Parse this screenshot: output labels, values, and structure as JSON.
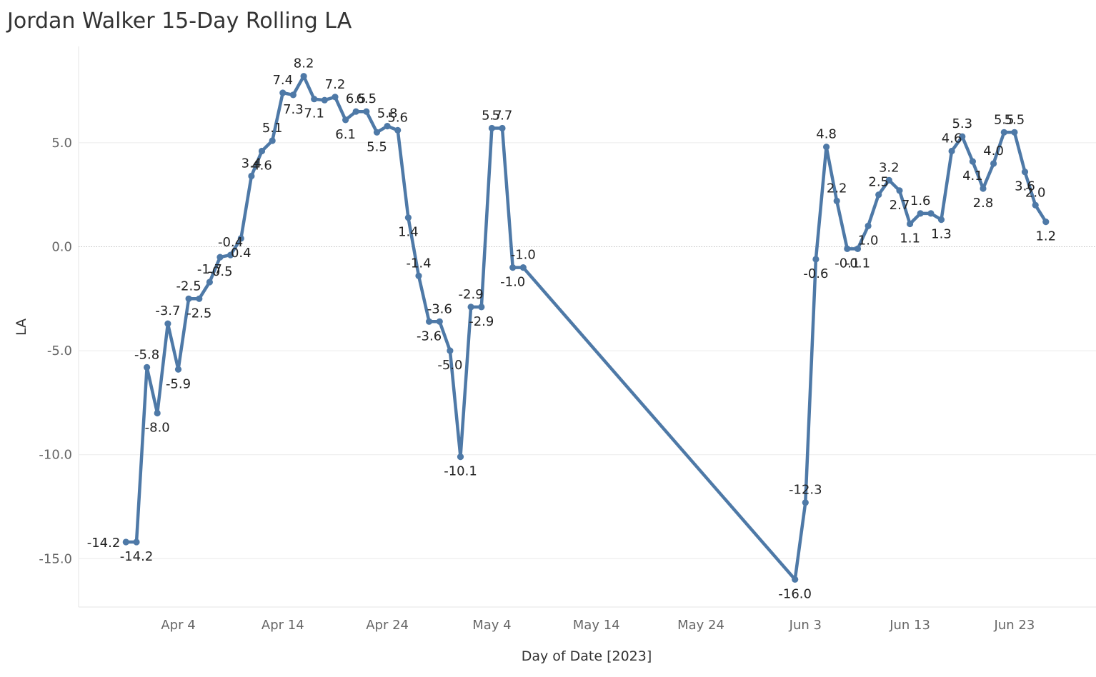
{
  "chart_data": {
    "type": "line",
    "title": "Jordan Walker 15-Day Rolling LA",
    "xlabel": "Day of Date [2023]",
    "ylabel": "LA",
    "ylim": [
      -17.5,
      9.5
    ],
    "yticks": [
      5.0,
      0.0,
      -5.0,
      -10.0,
      -15.0
    ],
    "ytick_labels": [
      "5.0",
      "0.0",
      "-5.0",
      "-10.0",
      "-15.0"
    ],
    "xticks": [
      "Apr 4",
      "Apr 14",
      "Apr 24",
      "May 4",
      "May 14",
      "May 24",
      "Jun 3",
      "Jun 13",
      "Jun 23"
    ],
    "grid": true,
    "line_color": "#4e79a7",
    "series": [
      {
        "x": [
          "Mar 30",
          "Mar 31",
          "Apr 1",
          "Apr 2",
          "Apr 3",
          "Apr 4",
          "Apr 5",
          "Apr 6",
          "Apr 7",
          "Apr 8",
          "Apr 9",
          "Apr 10",
          "Apr 11",
          "Apr 12",
          "Apr 13",
          "Apr 14",
          "Apr 15",
          "Apr 16",
          "Apr 17",
          "Apr 18",
          "Apr 19",
          "Apr 20",
          "Apr 21",
          "Apr 22",
          "Apr 23",
          "Apr 24",
          "Apr 25",
          "Apr 26",
          "Apr 27",
          "Apr 28",
          "Apr 29",
          "Apr 30",
          "May 1",
          "May 2",
          "May 3",
          "May 4",
          "May 5",
          "May 6",
          "May 7",
          "Jun 2",
          "Jun 3",
          "Jun 4",
          "Jun 5",
          "Jun 6",
          "Jun 7",
          "Jun 8",
          "Jun 9",
          "Jun 10",
          "Jun 11",
          "Jun 12",
          "Jun 13",
          "Jun 14",
          "Jun 15",
          "Jun 16",
          "Jun 17",
          "Jun 18",
          "Jun 19",
          "Jun 20",
          "Jun 21",
          "Jun 22",
          "Jun 23",
          "Jun 24",
          "Jun 25",
          "Jun 26"
        ],
        "values": [
          -14.2,
          -14.2,
          -5.8,
          -8.0,
          -3.7,
          -5.9,
          -2.5,
          -2.5,
          -1.7,
          -0.5,
          -0.4,
          0.4,
          3.4,
          4.6,
          5.1,
          7.4,
          7.3,
          8.2,
          7.1,
          7.05,
          7.2,
          6.1,
          6.5,
          6.5,
          5.5,
          5.8,
          5.6,
          1.4,
          -1.4,
          -3.6,
          -3.6,
          -5.0,
          -10.1,
          -2.9,
          -2.9,
          5.7,
          5.7,
          -1.0,
          -1.0,
          -16.0,
          -12.3,
          -0.6,
          4.8,
          2.2,
          -0.1,
          -0.1,
          1.0,
          2.5,
          3.2,
          2.7,
          1.1,
          1.6,
          1.6,
          1.3,
          4.6,
          5.3,
          4.1,
          2.8,
          4.0,
          5.5,
          5.5,
          3.6,
          2.0,
          1.2
        ],
        "labels": [
          "-14.2",
          "-14.2",
          "-5.8",
          "-8.0",
          "-3.7",
          "-5.9",
          "-2.5",
          "-2.5",
          "-1.7",
          "-0.5",
          "-0.4",
          "0.4",
          "3.4",
          "4.6",
          "5.1",
          "7.4",
          "7.3",
          "8.2",
          "7.1",
          "",
          "7.2",
          "6.1",
          "6.5",
          "6.5",
          "5.5",
          "5.8",
          "5.6",
          "1.4",
          "-1.4",
          "-3.6",
          "-3.6",
          "-5.0",
          "-10.1",
          "-2.9",
          "-2.9",
          "5.7",
          "5.7",
          "-1.0",
          "-1.0",
          "-16.0",
          "-12.3",
          "-0.6",
          "4.8",
          "2.2",
          "-0.1",
          "-0.1",
          "1.0",
          "2.5",
          "3.2",
          "2.7",
          "1.1",
          "1.6",
          "",
          "1.3",
          "4.6",
          "5.3",
          "4.1",
          "2.8",
          "4.0",
          "5.5",
          "5.5",
          "3.6",
          "2.0",
          "1.2"
        ]
      }
    ]
  }
}
